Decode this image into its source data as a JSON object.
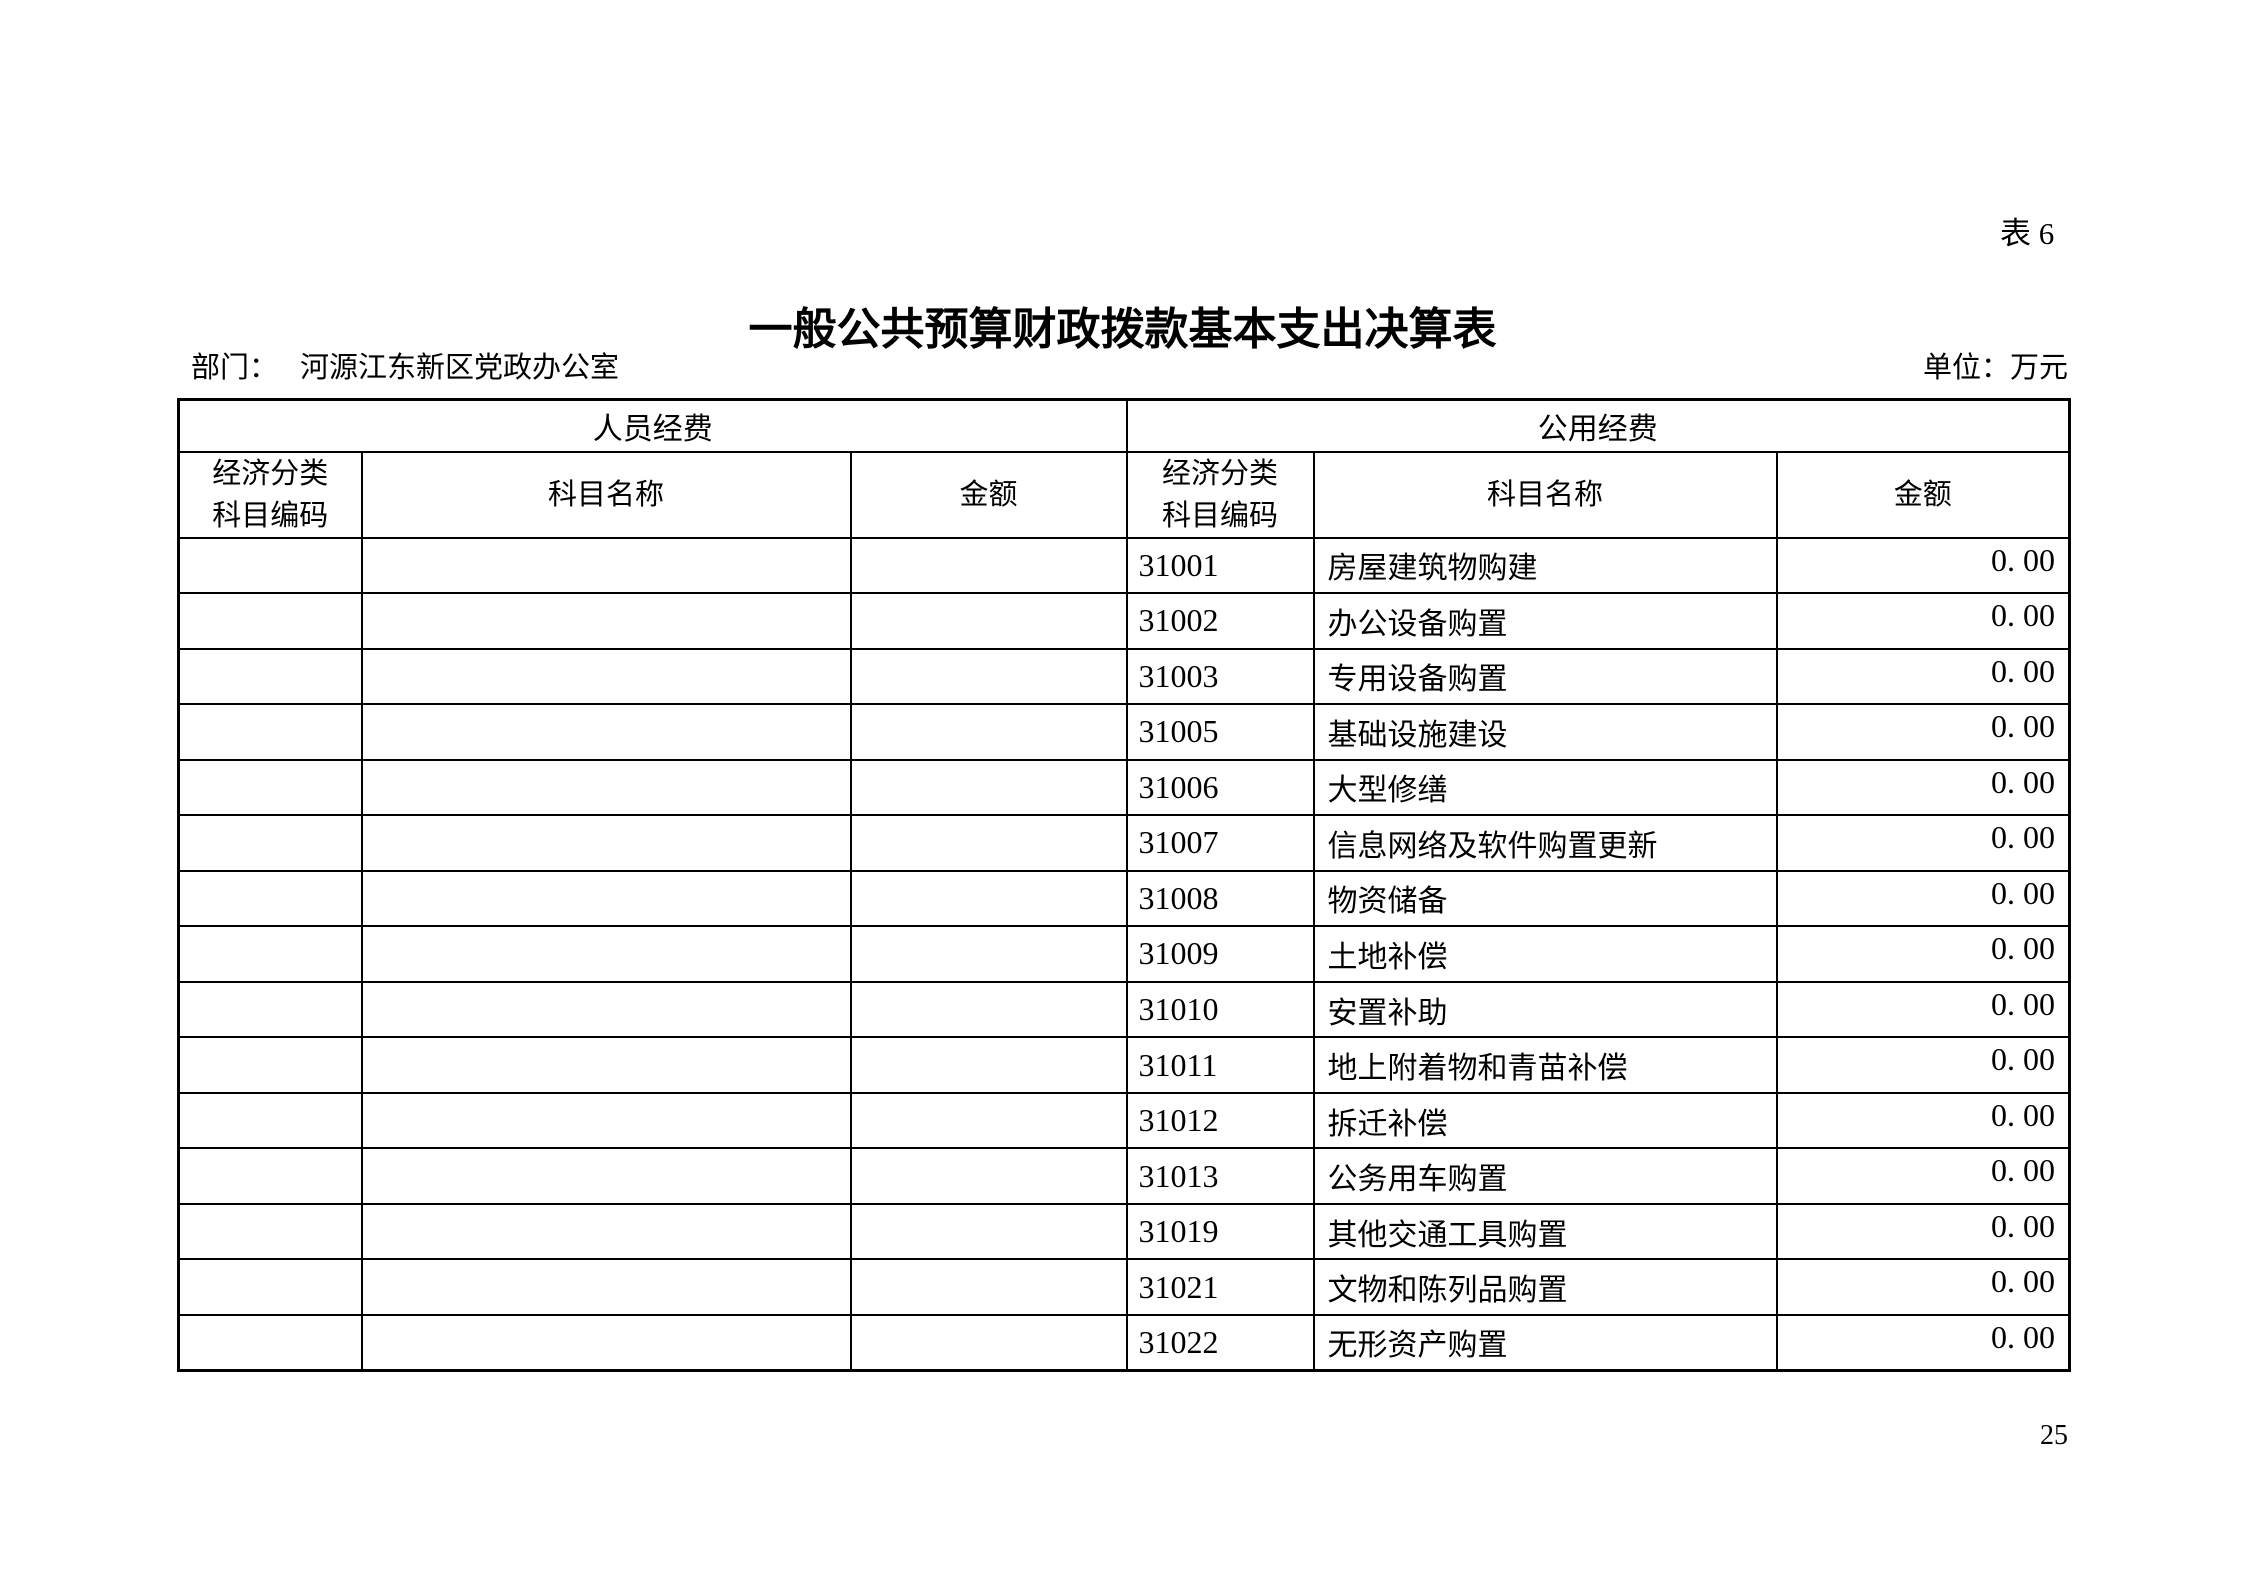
{
  "page": {
    "corner_label": "表 6",
    "title": "一般公共预算财政拨款基本支出决算表",
    "department_label": "部门：",
    "department_value": "河源江东新区党政办公室",
    "unit_label": "单位：万元",
    "page_number": "25"
  },
  "table": {
    "group_headers": {
      "left": "人员经费",
      "right": "公用经费"
    },
    "column_headers": {
      "code_line1": "经济分类",
      "code_line2": "科目编码",
      "name": "科目名称",
      "amount": "金额"
    },
    "rows": [
      {
        "left_code": "",
        "left_name": "",
        "left_amount": "",
        "code": "31001",
        "name": "房屋建筑物购建",
        "amount": "0. 00"
      },
      {
        "left_code": "",
        "left_name": "",
        "left_amount": "",
        "code": "31002",
        "name": "办公设备购置",
        "amount": "0. 00"
      },
      {
        "left_code": "",
        "left_name": "",
        "left_amount": "",
        "code": "31003",
        "name": "专用设备购置",
        "amount": "0. 00"
      },
      {
        "left_code": "",
        "left_name": "",
        "left_amount": "",
        "code": "31005",
        "name": "基础设施建设",
        "amount": "0. 00"
      },
      {
        "left_code": "",
        "left_name": "",
        "left_amount": "",
        "code": "31006",
        "name": "大型修缮",
        "amount": "0. 00"
      },
      {
        "left_code": "",
        "left_name": "",
        "left_amount": "",
        "code": "31007",
        "name": "信息网络及软件购置更新",
        "amount": "0. 00"
      },
      {
        "left_code": "",
        "left_name": "",
        "left_amount": "",
        "code": "31008",
        "name": "物资储备",
        "amount": "0. 00"
      },
      {
        "left_code": "",
        "left_name": "",
        "left_amount": "",
        "code": "31009",
        "name": "土地补偿",
        "amount": "0. 00"
      },
      {
        "left_code": "",
        "left_name": "",
        "left_amount": "",
        "code": "31010",
        "name": "安置补助",
        "amount": "0. 00"
      },
      {
        "left_code": "",
        "left_name": "",
        "left_amount": "",
        "code": "31011",
        "name": "地上附着物和青苗补偿",
        "amount": "0. 00"
      },
      {
        "left_code": "",
        "left_name": "",
        "left_amount": "",
        "code": "31012",
        "name": "拆迁补偿",
        "amount": "0. 00"
      },
      {
        "left_code": "",
        "left_name": "",
        "left_amount": "",
        "code": "31013",
        "name": "公务用车购置",
        "amount": "0. 00"
      },
      {
        "left_code": "",
        "left_name": "",
        "left_amount": "",
        "code": "31019",
        "name": "其他交通工具购置",
        "amount": "0. 00"
      },
      {
        "left_code": "",
        "left_name": "",
        "left_amount": "",
        "code": "31021",
        "name": "文物和陈列品购置",
        "amount": "0. 00"
      },
      {
        "left_code": "",
        "left_name": "",
        "left_amount": "",
        "code": "31022",
        "name": "无形资产购置",
        "amount": "0. 00"
      }
    ]
  }
}
